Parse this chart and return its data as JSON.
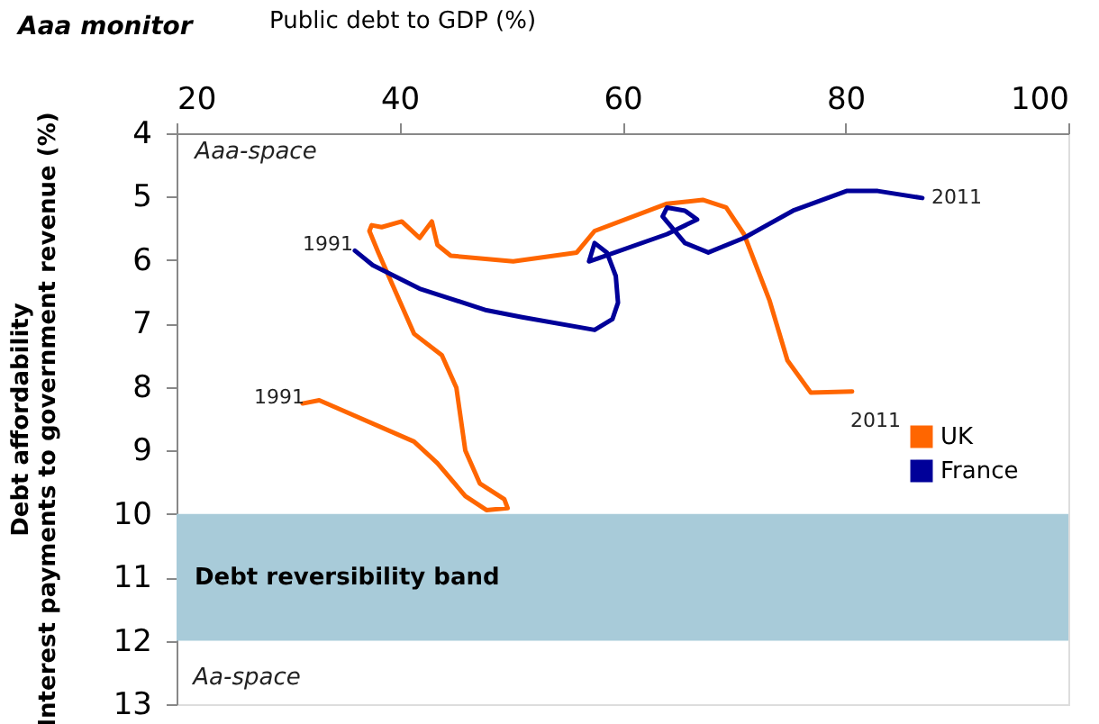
{
  "chart_data": {
    "type": "line",
    "title": "Aaa monitor",
    "xlabel": "Public debt to GDP (%)",
    "ylabel": [
      "Debt affordability",
      "Interest payments to government revenue (%)"
    ],
    "xlim": [
      20,
      100
    ],
    "xticks": [
      20,
      40,
      60,
      80,
      100
    ],
    "ylim": [
      13,
      4
    ],
    "yticks": [
      4,
      5,
      6,
      7,
      8,
      9,
      10,
      11,
      12,
      13
    ],
    "grid": false,
    "legend": "bottom right",
    "line_style": "solid",
    "marker": "none",
    "series": [
      {
        "name": "UK",
        "color": "#ff6600",
        "x": [
          31.3,
          32.8,
          41.3,
          43.4,
          45.9,
          47.8,
          49.7,
          49.4,
          47.2,
          45.9,
          45.1,
          43.8,
          41.3,
          38.1,
          37.3,
          37.5,
          38.4,
          40.2,
          41.8,
          42.9,
          43.4,
          44.6,
          50.2,
          55.9,
          57.5,
          64.0,
          67.2,
          69.3,
          70.9,
          73.2,
          74.8,
          76.9,
          80.6
        ],
        "values": [
          8.26,
          8.21,
          8.86,
          9.2,
          9.72,
          9.94,
          9.91,
          9.77,
          9.52,
          9.0,
          8.01,
          7.5,
          7.16,
          5.88,
          5.54,
          5.45,
          5.48,
          5.39,
          5.65,
          5.39,
          5.76,
          5.93,
          6.02,
          5.88,
          5.54,
          5.11,
          5.05,
          5.17,
          5.59,
          6.64,
          7.58,
          8.09,
          8.07
        ]
      },
      {
        "name": "France",
        "color": "#000099",
        "x": [
          36.0,
          37.6,
          41.8,
          47.8,
          51.0,
          57.5,
          59.1,
          59.6,
          59.4,
          58.6,
          57.5,
          57.0,
          58.0,
          64.0,
          66.7,
          65.6,
          64.0,
          63.6,
          65.6,
          67.7,
          70.9,
          75.3,
          80.1,
          82.9,
          86.9
        ],
        "values": [
          5.85,
          6.08,
          6.45,
          6.79,
          6.9,
          7.1,
          6.93,
          6.67,
          6.25,
          5.88,
          5.73,
          6.02,
          5.96,
          5.59,
          5.36,
          5.22,
          5.17,
          5.31,
          5.73,
          5.88,
          5.65,
          5.22,
          4.91,
          4.91,
          5.02
        ]
      }
    ],
    "bands": [
      {
        "axis": "y",
        "from": 10,
        "to": 12,
        "label": "Debt reversibility band",
        "color": "#a8cbd9"
      }
    ],
    "annotations": [
      "1991",
      "1991",
      "2011",
      "2011",
      "Aaa-space",
      "Aa-space"
    ]
  }
}
